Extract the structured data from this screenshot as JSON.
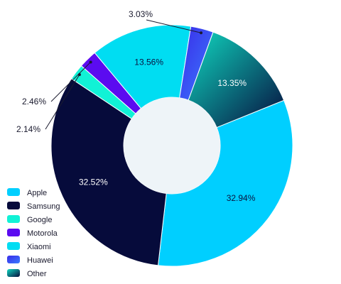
{
  "chart_data": {
    "type": "pie",
    "variant": "donut",
    "title": "",
    "legend_position": "bottom-left",
    "series": [
      {
        "name": "Apple",
        "value": 32.94,
        "label": "32.94%",
        "color": "#00CFFF",
        "label_color": "#0a1340"
      },
      {
        "name": "Samsung",
        "value": 32.52,
        "label": "32.52%",
        "color": "#060B3B",
        "label_color": "#ffffff"
      },
      {
        "name": "Google",
        "value": 2.14,
        "label": "2.14%",
        "color": "#11F2D6",
        "label_color": "#1a1a2e"
      },
      {
        "name": "Motorola",
        "value": 2.46,
        "label": "2.46%",
        "color": "#5B0BF0",
        "label_color": "#1a1a2e"
      },
      {
        "name": "Xiaomi",
        "value": 13.56,
        "label": "13.56%",
        "color": "#00DDF2",
        "label_color": "#0a1340"
      },
      {
        "name": "Huawei",
        "value": 3.03,
        "label": "3.03%",
        "color": "#3A2BE8",
        "label_color": "#1a1a2e",
        "gradient_to": "#3A7BFF"
      },
      {
        "name": "Other",
        "value": 13.35,
        "label": "13.35%",
        "color": "#0FD8C0",
        "label_color": "#ffffff",
        "gradient_to": "#070C3D"
      }
    ],
    "center_color": "#EEF4F8"
  }
}
